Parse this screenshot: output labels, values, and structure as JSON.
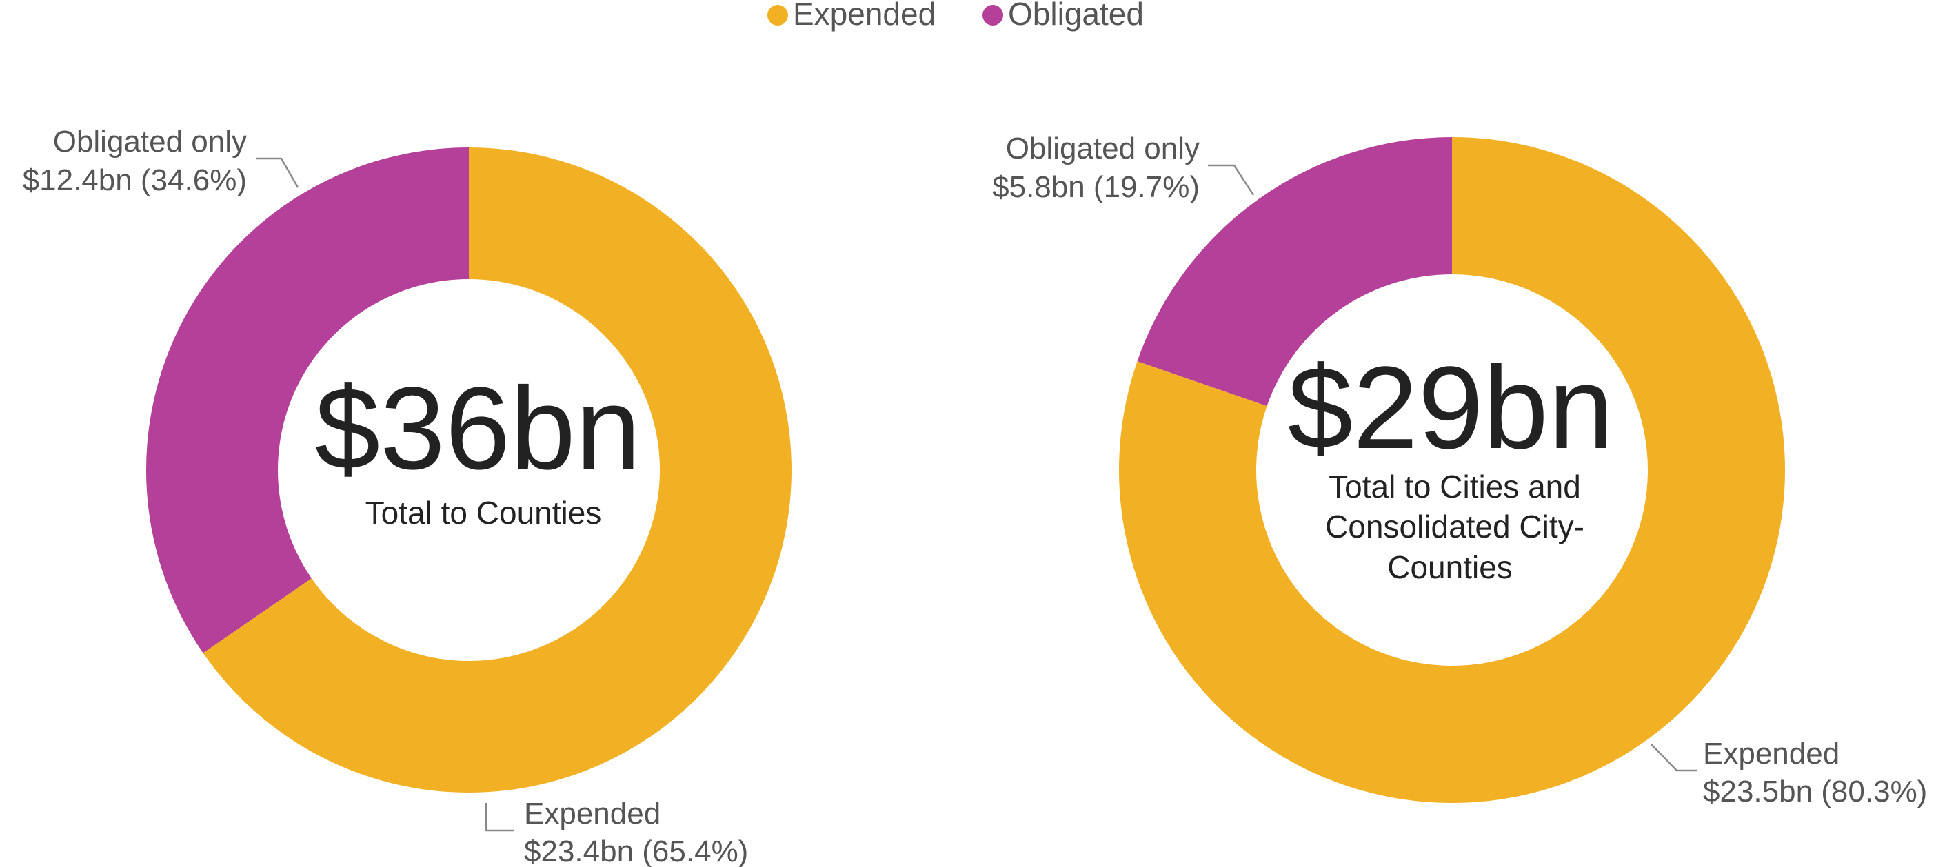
{
  "legend": {
    "items": [
      {
        "label": "Expended",
        "color": "#F2B124"
      },
      {
        "label": "Obligated",
        "color": "#B5409A"
      }
    ]
  },
  "chart_data": [
    {
      "type": "pie",
      "variant": "donut",
      "center_value": "$36bn",
      "center_label": [
        "Total to Counties"
      ],
      "slices": [
        {
          "name": "Expended",
          "value": 23.4,
          "percent": 65.4,
          "color": "#F2B124",
          "label_line1": "Expended",
          "label_line2": "$23.4bn (65.4%)"
        },
        {
          "name": "Obligated",
          "value": 12.4,
          "percent": 34.6,
          "color": "#B5409A",
          "label_line1": "Obligated only",
          "label_line2": "$12.4bn (34.6%)"
        }
      ]
    },
    {
      "type": "pie",
      "variant": "donut",
      "center_value": "$29bn",
      "center_label": [
        "Total to Cities and",
        "Consolidated City-",
        "Counties"
      ],
      "slices": [
        {
          "name": "Expended",
          "value": 23.5,
          "percent": 80.3,
          "color": "#F2B124",
          "label_line1": "Expended",
          "label_line2": "$23.5bn (80.3%)"
        },
        {
          "name": "Obligated",
          "value": 5.8,
          "percent": 19.7,
          "color": "#B5409A",
          "label_line1": "Obligated only",
          "label_line2": "$5.8bn (19.7%)"
        }
      ]
    }
  ]
}
